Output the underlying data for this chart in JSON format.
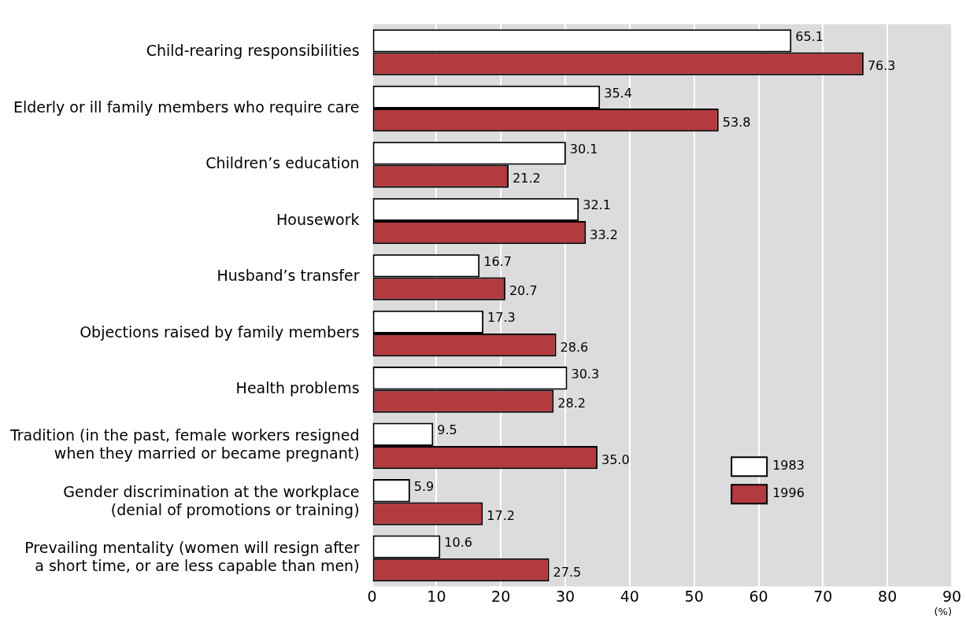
{
  "chart_data": {
    "type": "bar",
    "orientation": "horizontal",
    "categories": [
      "Child-rearing responsibilities",
      "Elderly or ill family members who require care",
      "Children’s education",
      "Housework",
      "Husband’s transfer",
      "Objections raised by family members",
      "Health problems",
      "Tradition (in the past, female workers resigned\nwhen they married or became pregnant)",
      "Gender discrimination at the workplace\n(denial of promotions or training)",
      "Prevailing mentality (women will resign after\na short time, or are less capable than men)"
    ],
    "series": [
      {
        "name": "1983",
        "color": "#ffffff",
        "values": [
          65.1,
          35.4,
          30.1,
          32.1,
          16.7,
          17.3,
          30.3,
          9.5,
          5.9,
          10.6
        ],
        "value_labels": [
          "65.1",
          "35.4",
          "30.1",
          "32.1",
          "16.7",
          "17.3",
          "30.3",
          "9.5",
          "5.9",
          "10.6"
        ]
      },
      {
        "name": "1996",
        "color": "#b33a3f",
        "values": [
          76.3,
          53.8,
          21.2,
          33.2,
          20.7,
          28.6,
          28.2,
          35.0,
          17.2,
          27.5
        ],
        "value_labels": [
          "76.3",
          "53.8",
          "21.2",
          "33.2",
          "20.7",
          "28.6",
          "28.2",
          "35.0",
          "17.2",
          "27.5"
        ]
      }
    ],
    "xlim": [
      0,
      90
    ],
    "xticks": [
      0,
      10,
      20,
      30,
      40,
      50,
      60,
      70,
      80,
      90
    ],
    "xlabel": "(%)",
    "grid": "x",
    "legend": "right"
  }
}
